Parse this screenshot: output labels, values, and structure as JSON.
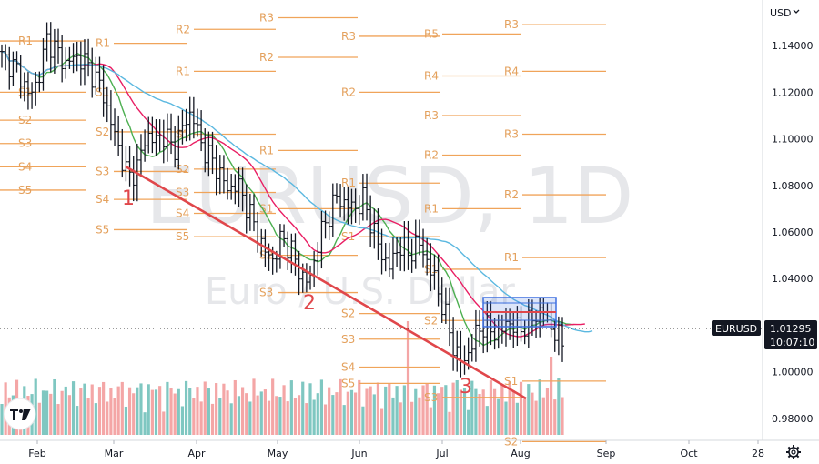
{
  "currency": "USD",
  "chart_data": {
    "type": "candlestick",
    "symbol_watermark": "EURUSD, 1D",
    "subtitle_watermark": "Euro / U.S. Dollar",
    "x_months": [
      "Feb",
      "Mar",
      "Apr",
      "May",
      "Jun",
      "Jul",
      "Aug",
      "Sep",
      "Oct",
      "28"
    ],
    "y_ticks": [
      "1.14000",
      "1.12000",
      "1.10000",
      "1.08000",
      "1.06000",
      "1.04000",
      "1.02000",
      "1.00000",
      "0.98000"
    ],
    "ylim": [
      0.967,
      1.152
    ],
    "last_price": "1.01295",
    "countdown": "10:07:10",
    "symbol_tag": "EURUSD",
    "trend_line": {
      "from": [
        "Mar 1",
        1.082
      ],
      "to": [
        "Aug 20",
        0.982
      ]
    },
    "wave_labels": [
      "1",
      "2",
      "3"
    ],
    "price_path": [
      1.135,
      1.132,
      1.128,
      1.118,
      1.125,
      1.143,
      1.138,
      1.132,
      1.135,
      1.134,
      1.128,
      1.122,
      1.108,
      1.095,
      1.083,
      1.088,
      1.102,
      1.099,
      1.102,
      1.095,
      1.105,
      1.112,
      1.098,
      1.092,
      1.086,
      1.078,
      1.081,
      1.072,
      1.062,
      1.052,
      1.048,
      1.058,
      1.052,
      1.042,
      1.038,
      1.056,
      1.066,
      1.075,
      1.072,
      1.07,
      1.074,
      1.062,
      1.05,
      1.045,
      1.055,
      1.05,
      1.056,
      1.048,
      1.038,
      1.025,
      1.01,
      1.003,
      1.012,
      1.02,
      1.018,
      1.016,
      1.022,
      1.018,
      1.02,
      1.024,
      1.027,
      1.017,
      1.013
    ],
    "pivot_levels": [
      {
        "labels": [
          "R1",
          "S1",
          "S2",
          "S3",
          "S4",
          "S5"
        ],
        "values": [
          1.142,
          1.12,
          1.108,
          1.098,
          1.088,
          1.078
        ]
      },
      {
        "labels": [
          "R1",
          "S1",
          "S2",
          "S3",
          "S4",
          "S5"
        ],
        "values": [
          1.141,
          1.12,
          1.103,
          1.086,
          1.074,
          1.061
        ]
      },
      {
        "labels": [
          "R2",
          "R1",
          "S1",
          "S2",
          "S3",
          "S4",
          "S5"
        ],
        "values": [
          1.147,
          1.129,
          1.102,
          1.087,
          1.077,
          1.068,
          1.058
        ]
      },
      {
        "labels": [
          "R3",
          "R2",
          "R1",
          "S1",
          "S2",
          "S3"
        ],
        "values": [
          1.152,
          1.135,
          1.095,
          1.07,
          1.05,
          1.034
        ]
      },
      {
        "labels": [
          "R3",
          "R2",
          "R1",
          "S1",
          "S2",
          "S3",
          "S4",
          "S5"
        ],
        "values": [
          1.144,
          1.12,
          1.081,
          1.058,
          1.025,
          1.014,
          1.002,
          0.995
        ]
      },
      {
        "labels": [
          "R5",
          "R4",
          "R3",
          "R2",
          "R1",
          "S1",
          "S2",
          "S3"
        ],
        "values": [
          1.145,
          1.127,
          1.11,
          1.093,
          1.07,
          1.044,
          1.022,
          0.989
        ]
      },
      {
        "labels": [
          "R3",
          "R4",
          "R3",
          "R2",
          "R1",
          "S1",
          "S2"
        ],
        "values": [
          1.149,
          1.129,
          1.102,
          1.076,
          1.049,
          0.996,
          0.97
        ]
      }
    ],
    "moving_averages": [
      {
        "color": "#4caf50",
        "lag": 3
      },
      {
        "color": "#e91e63",
        "lag": 6
      },
      {
        "color": "#5bb8e0",
        "lag": 12
      }
    ],
    "colors": {
      "trend": "#e0474b",
      "pivot": "#f0a45a",
      "bar": "#131722",
      "vol_up": "#7fc7c1",
      "vol_down": "#f4a6a6",
      "box": "#3d6fe0"
    }
  }
}
